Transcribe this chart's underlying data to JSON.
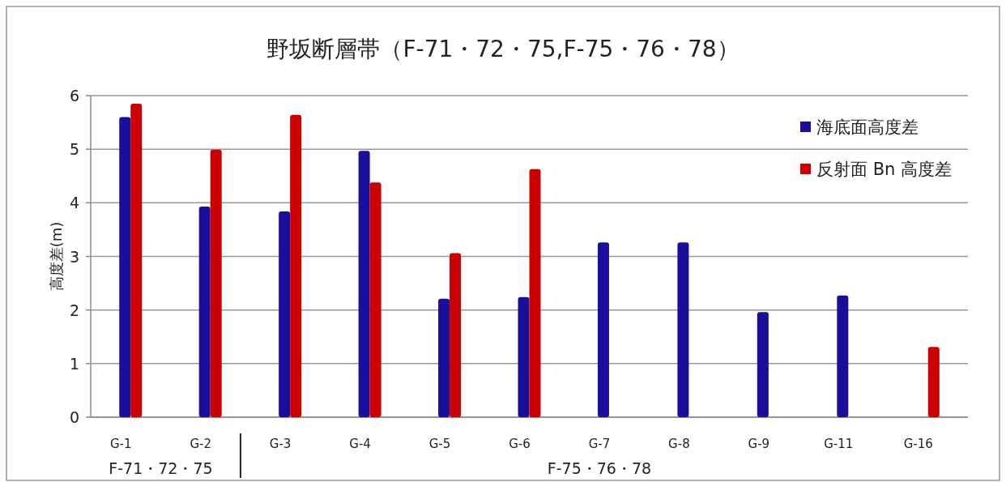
{
  "chart_data": {
    "type": "bar",
    "title": "野坂断層帯（F-71・72・75,F-75・76・78）",
    "ylabel": "高度差(m)",
    "categories": [
      "G-1",
      "G-2",
      "G-3",
      "G-4",
      "G-5",
      "G-6",
      "G-7",
      "G-8",
      "G-9",
      "G-11",
      "G-16"
    ],
    "series": [
      {
        "name": "海底面高度差",
        "color": "#1a0f9a",
        "values": [
          5.6,
          3.93,
          3.84,
          4.97,
          2.21,
          2.24,
          3.26,
          3.26,
          1.96,
          2.27,
          null
        ]
      },
      {
        "name": "反射面 Bn 高度差",
        "color": "#cc0000",
        "values": [
          5.85,
          4.99,
          5.64,
          4.38,
          3.06,
          4.63,
          null,
          null,
          null,
          null,
          1.31
        ]
      }
    ],
    "ylim": [
      0,
      6
    ],
    "yticks": [
      0,
      1,
      2,
      3,
      4,
      5,
      6
    ],
    "grid": "y",
    "legend": "top right",
    "annotations": [
      "F-71・72・75",
      "F-75・76・78"
    ]
  }
}
